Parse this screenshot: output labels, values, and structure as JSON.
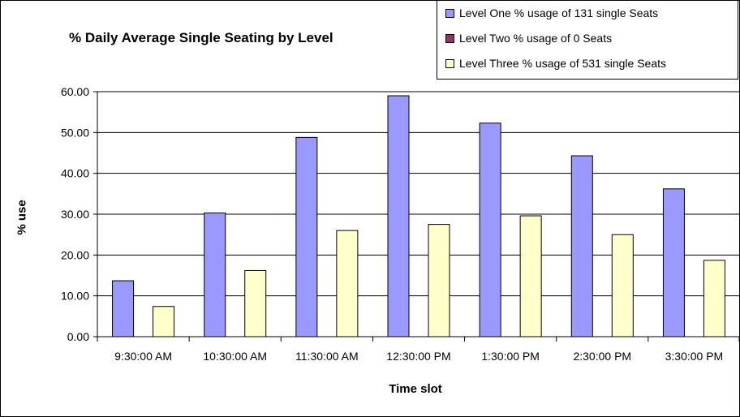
{
  "chart_data": {
    "type": "bar",
    "title": "% Daily Average Single Seating by Level",
    "xlabel": "Time slot",
    "ylabel": "% use",
    "ylim": [
      0,
      60
    ],
    "yticks": [
      "0.00",
      "10.00",
      "20.00",
      "30.00",
      "40.00",
      "50.00",
      "60.00"
    ],
    "categories": [
      "9:30:00 AM",
      "10:30:00 AM",
      "11:30:00 AM",
      "12:30:00 PM",
      "1:30:00 PM",
      "2:30:00 PM",
      "3:30:00 PM"
    ],
    "series": [
      {
        "name": "Level One % usage of 131 single Seats",
        "color": "#9999ff",
        "values": [
          13.7,
          30.3,
          48.8,
          59.0,
          52.3,
          44.3,
          36.2
        ]
      },
      {
        "name": "Level Two %  usage of 0 Seats",
        "color": "#993366",
        "values": [
          0,
          0,
          0,
          0,
          0,
          0,
          0
        ]
      },
      {
        "name": "Level Three %  usage of 531 single Seats",
        "color": "#ffffcc",
        "values": [
          7.4,
          16.2,
          26.0,
          27.5,
          29.6,
          25.0,
          18.7
        ]
      }
    ],
    "grid": true,
    "legend_position": "top-right"
  }
}
